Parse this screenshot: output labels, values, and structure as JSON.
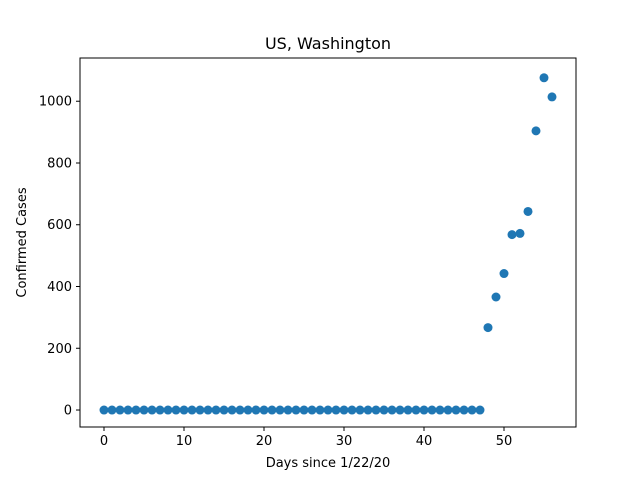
{
  "chart_data": {
    "type": "scatter",
    "title": "US, Washington",
    "xlabel": "Days since 1/22/20",
    "ylabel": "Confirmed Cases",
    "xlim": [
      -3,
      59
    ],
    "ylim": [
      -55,
      1140
    ],
    "xticks": [
      0,
      10,
      20,
      30,
      40,
      50
    ],
    "yticks": [
      0,
      200,
      400,
      600,
      800,
      1000
    ],
    "grid": false,
    "marker_color": "#1f77b4",
    "series": [
      {
        "x": [
          0,
          1,
          2,
          3,
          4,
          5,
          6,
          7,
          8,
          9,
          10,
          11,
          12,
          13,
          14,
          15,
          16,
          17,
          18,
          19,
          20,
          21,
          22,
          23,
          24,
          25,
          26,
          27,
          28,
          29,
          30,
          31,
          32,
          33,
          34,
          35,
          36,
          37,
          38,
          39,
          40,
          41,
          42,
          43,
          44,
          45,
          46,
          47,
          48,
          49,
          50,
          51,
          52,
          53,
          54,
          55,
          56
        ],
        "y": [
          0,
          0,
          0,
          0,
          0,
          0,
          0,
          0,
          0,
          0,
          0,
          0,
          0,
          0,
          0,
          0,
          0,
          0,
          0,
          0,
          0,
          0,
          0,
          0,
          0,
          0,
          0,
          0,
          0,
          0,
          0,
          0,
          0,
          0,
          0,
          0,
          0,
          0,
          0,
          0,
          0,
          0,
          0,
          0,
          0,
          0,
          0,
          0,
          267,
          366,
          442,
          568,
          572,
          643,
          904,
          1076,
          1014
        ]
      }
    ]
  }
}
